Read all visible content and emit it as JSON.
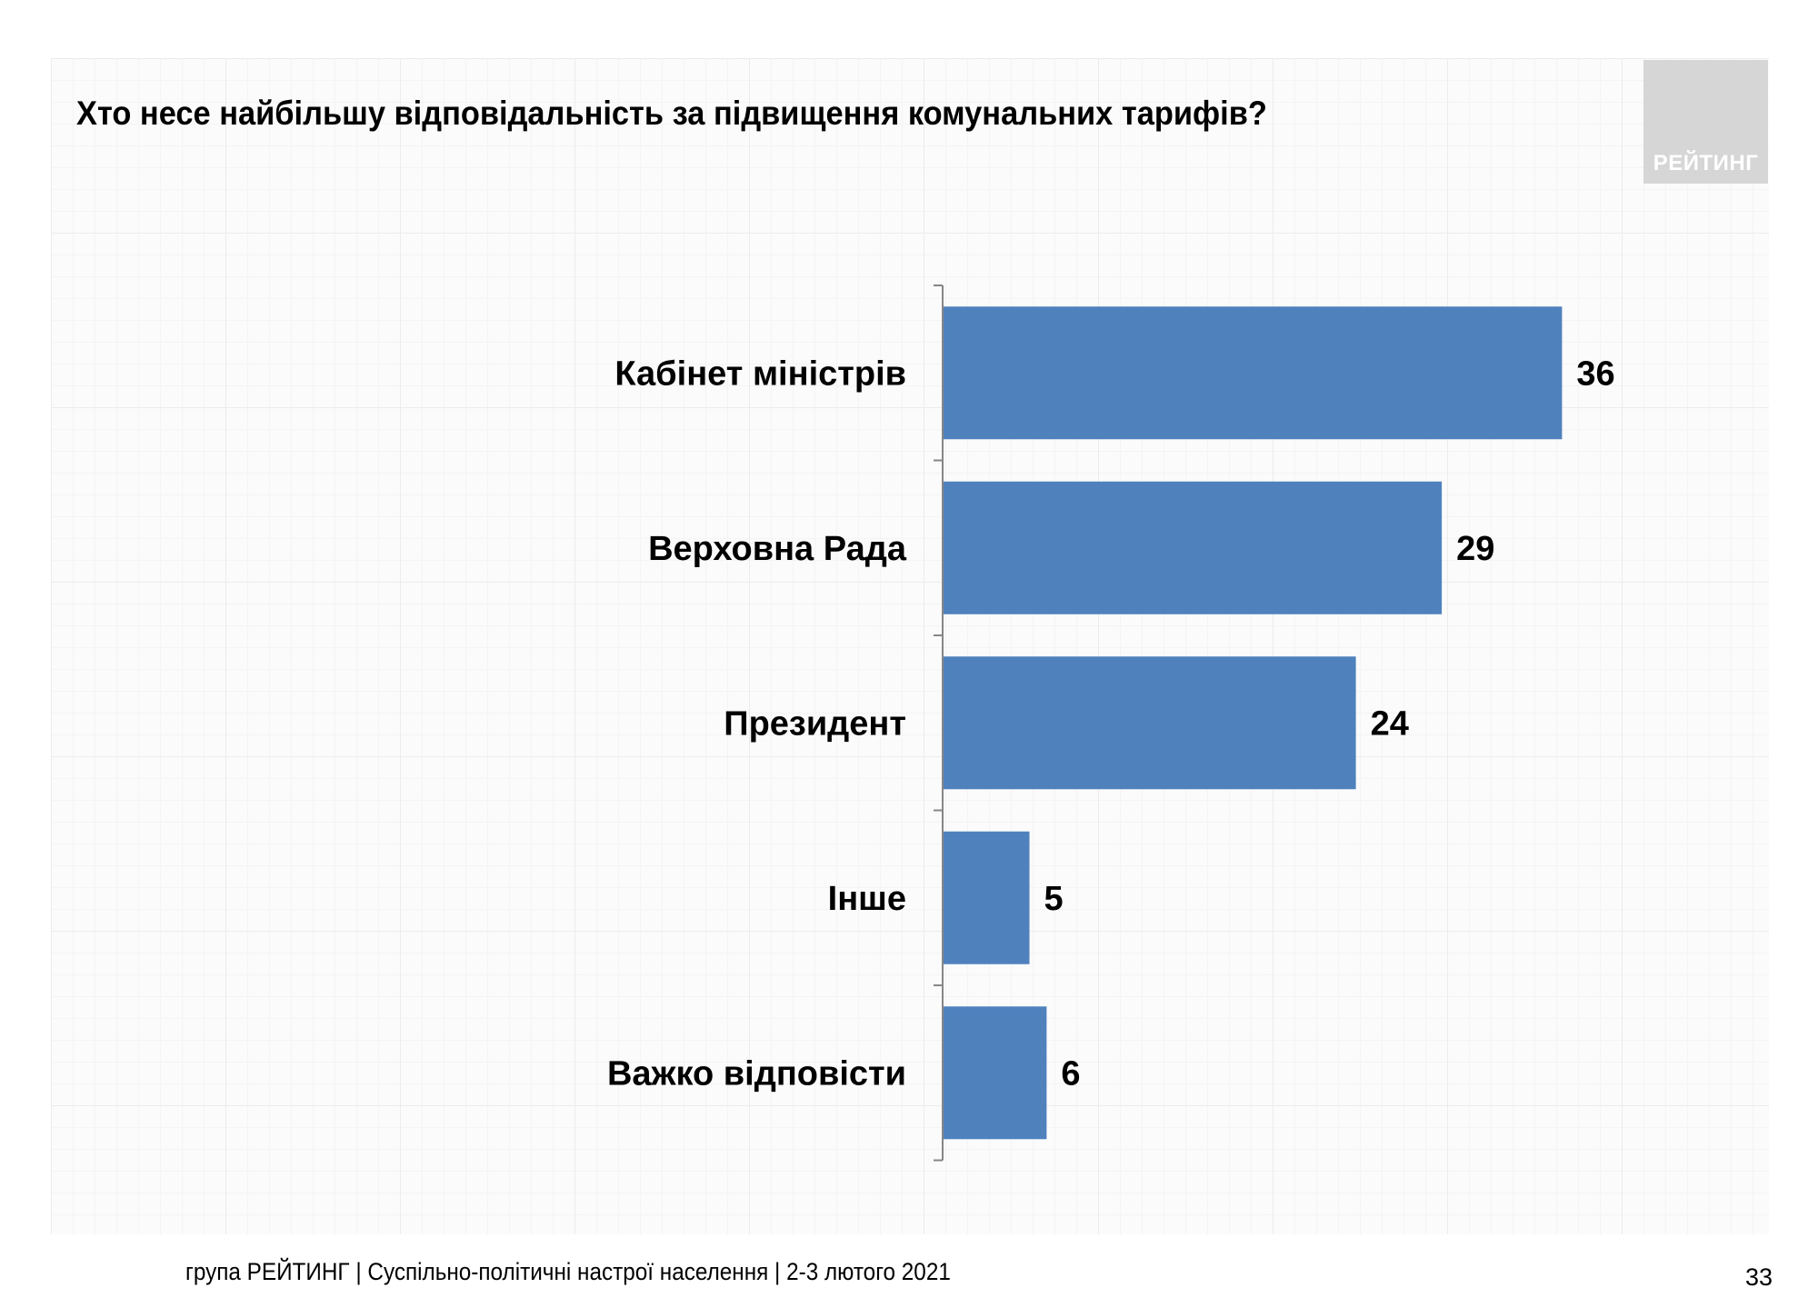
{
  "logo_text": "РЕЙТИНГ",
  "footer": {
    "text": "група РЕЙТИНГ | Суспільно-політичні настрої населення  | 2-3 лютого 2021",
    "page_number": "33"
  },
  "chart_data": {
    "type": "bar",
    "orientation": "horizontal",
    "title": "Хто несе найбільшу відповідальність за підвищення комунальних тарифів?",
    "categories": [
      "Кабінет міністрів",
      "Верховна Рада",
      "Президент",
      "Інше",
      "Важко відповісти"
    ],
    "values": [
      36,
      29,
      24,
      5,
      6
    ],
    "data_labels": [
      "36",
      "29",
      "24",
      "5",
      "6"
    ],
    "bar_color": "#4f81bd",
    "xlim": [
      0,
      36
    ],
    "grid": false,
    "legend": "none"
  }
}
